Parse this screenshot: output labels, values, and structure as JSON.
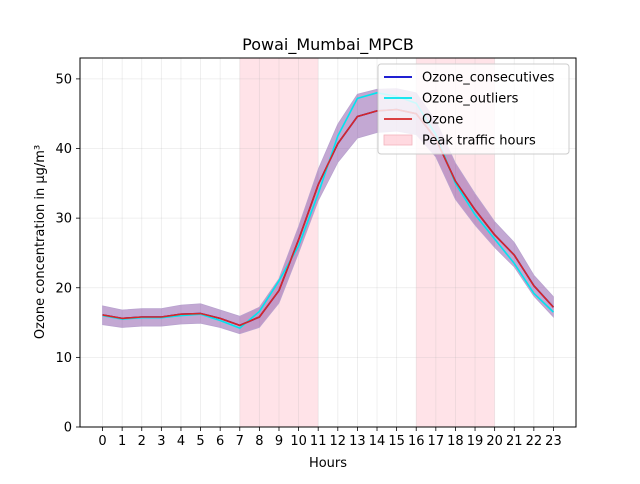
{
  "chart_data": {
    "type": "line",
    "title": "Powai_Mumbai_MPCB",
    "xlabel": "Hours",
    "ylabel": "Ozone concentration in µg/m³",
    "x": [
      0,
      1,
      2,
      3,
      4,
      5,
      6,
      7,
      8,
      9,
      10,
      11,
      12,
      13,
      14,
      15,
      16,
      17,
      18,
      19,
      20,
      21,
      22,
      23
    ],
    "xlim": [
      -1.15,
      24.15
    ],
    "ylim": [
      0,
      53
    ],
    "yticks": [
      0,
      10,
      20,
      30,
      40,
      50
    ],
    "grid": true,
    "legend_position": "top-right",
    "shaded_regions": [
      {
        "name": "Peak traffic hours",
        "start": 7,
        "end": 11,
        "color": "#ffc0cb",
        "alpha": 0.45
      },
      {
        "name": "Peak traffic hours",
        "start": 16,
        "end": 20,
        "color": "#ffc0cb",
        "alpha": 0.45
      }
    ],
    "band": {
      "lower": [
        14.7,
        14.3,
        14.5,
        14.5,
        14.8,
        14.9,
        14.3,
        13.4,
        14.3,
        17.8,
        25.0,
        32.5,
        38.0,
        41.5,
        42.3,
        42.5,
        42.0,
        38.8,
        32.7,
        29.0,
        25.8,
        23.0,
        18.8,
        15.8
      ],
      "upper": [
        17.4,
        16.8,
        17.0,
        17.0,
        17.5,
        17.7,
        16.8,
        15.9,
        17.2,
        21.3,
        28.8,
        37.0,
        43.5,
        47.8,
        48.5,
        48.6,
        48.0,
        44.0,
        37.9,
        33.5,
        29.5,
        26.5,
        21.8,
        18.7
      ],
      "color": "#7b3f9e",
      "alpha": 0.45
    },
    "series": [
      {
        "name": "Ozone_consecutives",
        "color": "#0000cc",
        "values": [
          16.1,
          15.6,
          15.8,
          15.8,
          16.2,
          16.3,
          15.6,
          14.6,
          15.8,
          19.6,
          26.9,
          34.8,
          40.7,
          44.6,
          45.4,
          45.6,
          45.0,
          41.4,
          35.3,
          31.2,
          27.6,
          24.7,
          20.3,
          17.2
        ]
      },
      {
        "name": "Ozone_outliers",
        "color": "#00e5ee",
        "values": [
          16.0,
          15.5,
          15.7,
          15.7,
          16.0,
          16.2,
          15.3,
          14.2,
          16.6,
          21.0,
          26.0,
          33.5,
          41.8,
          47.2,
          48.0,
          47.5,
          46.5,
          42.0,
          35.0,
          30.5,
          27.0,
          23.5,
          19.2,
          16.5
        ]
      },
      {
        "name": "Ozone",
        "color": "#d62728",
        "values": [
          16.1,
          15.6,
          15.8,
          15.8,
          16.2,
          16.3,
          15.6,
          14.6,
          15.8,
          19.6,
          26.9,
          34.8,
          40.7,
          44.6,
          45.4,
          45.6,
          45.0,
          41.4,
          35.3,
          31.2,
          27.6,
          24.7,
          20.3,
          17.2
        ]
      }
    ],
    "legend": [
      {
        "label": "Ozone_consecutives",
        "kind": "line",
        "color": "#0000cc"
      },
      {
        "label": "Ozone_outliers",
        "kind": "line",
        "color": "#00e5ee"
      },
      {
        "label": "Ozone",
        "kind": "line",
        "color": "#d62728"
      },
      {
        "label": "Peak traffic hours",
        "kind": "patch",
        "color": "#ffc0cb"
      }
    ]
  }
}
